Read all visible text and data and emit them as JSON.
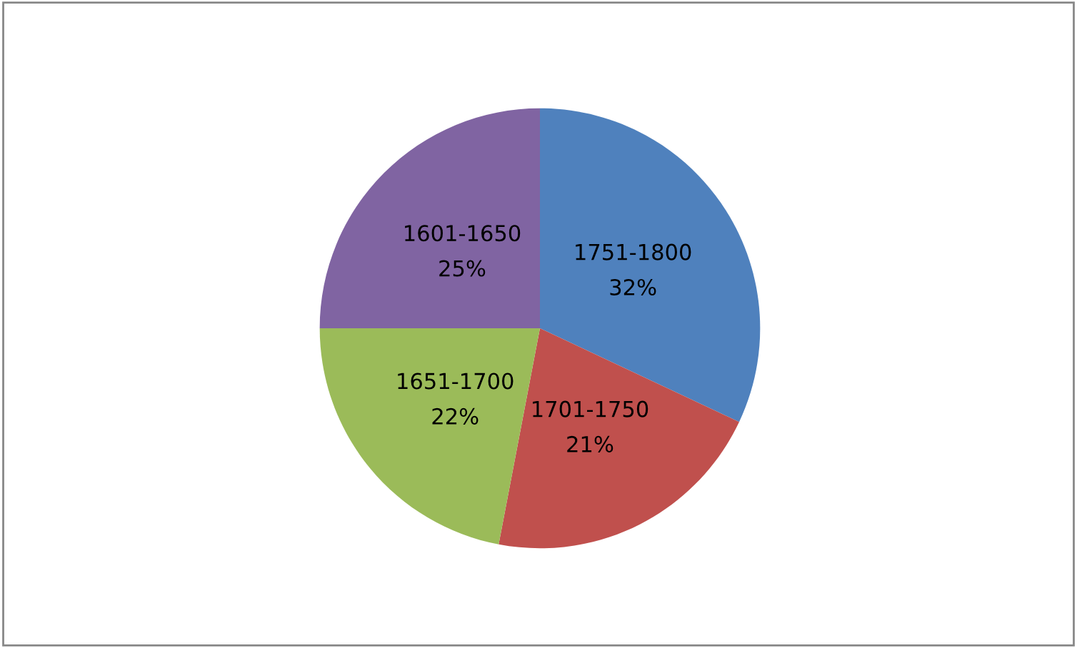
{
  "chart_data": {
    "type": "pie",
    "categories": [
      "1751-1800",
      "1701-1750",
      "1651-1700",
      "1601-1650"
    ],
    "values": [
      32,
      21,
      22,
      25
    ],
    "value_labels": [
      "32%",
      "21%",
      "22%",
      "25%"
    ],
    "colors": [
      "#4f81bd",
      "#c0504d",
      "#9bbb59",
      "#8064a2"
    ]
  }
}
